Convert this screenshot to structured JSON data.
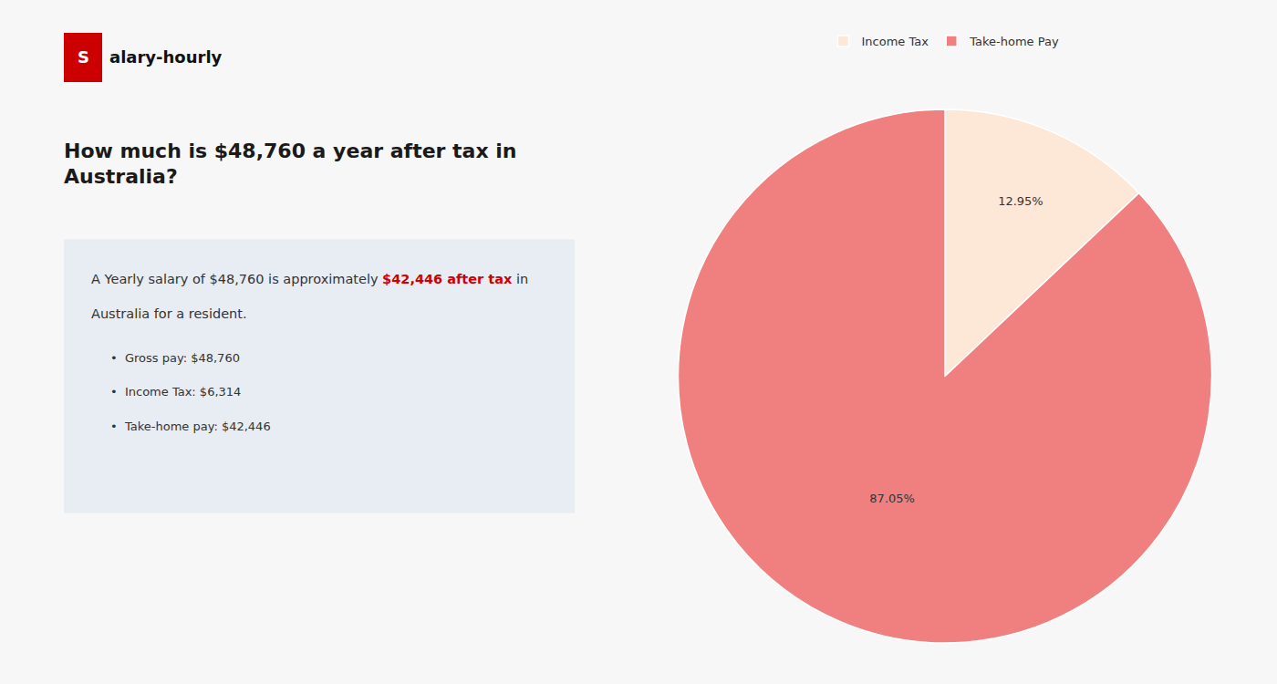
{
  "chart_data": {
    "type": "pie",
    "title": "How much is $48,760 a year after tax in\nAustralia?",
    "categories": [
      "Income Tax",
      "Take-home Pay"
    ],
    "values": [
      12.95,
      87.05
    ],
    "value_labels": [
      "12.95%",
      "87.05%"
    ],
    "colors": [
      "#fde8d8",
      "#f08080"
    ],
    "data_labels": true,
    "legend": "top",
    "annotations": [
      [
        {
          "text": "S",
          "color": "#cc0000"
        },
        {
          "text": "alary-hourly"
        }
      ],
      [
        {
          "text": "A Yearly salary of $48,760 is approximately "
        },
        {
          "text": "$42,446 after tax",
          "color": "#cc0000"
        },
        {
          "text": " in"
        }
      ],
      [
        {
          "text": "Australia for a resident."
        }
      ],
      [
        {
          "text": "•"
        },
        {
          "text": "Gross pay: $48,760"
        }
      ],
      [
        {
          "text": "•"
        },
        {
          "text": "Income Tax: $6,314"
        }
      ],
      [
        {
          "text": "•"
        },
        {
          "text": "Take-home pay: $42,446"
        }
      ]
    ]
  }
}
